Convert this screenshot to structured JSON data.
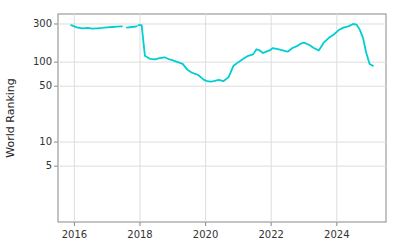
{
  "chart_data": {
    "type": "line",
    "ylabel": "World Ranking",
    "color": "#00CED1",
    "log": "y",
    "grid": true,
    "xlim": [
      2015.5,
      2025.5
    ],
    "xticks": [
      2016,
      2018,
      2020,
      2022,
      2024
    ],
    "ylim": [
      1,
      400
    ],
    "yticks": [
      5,
      10,
      50,
      100,
      300
    ],
    "x": [
      2015.9,
      2016.1,
      2016.25,
      2016.4,
      2016.55,
      2016.7,
      2016.85,
      2017.0,
      2017.15,
      2017.3,
      2017.45,
      null,
      2017.6,
      2017.75,
      2017.9,
      null,
      2017.95,
      2018.05,
      2018.15,
      2018.3,
      2018.45,
      2018.6,
      2018.75,
      2018.9,
      2019.0,
      2019.15,
      2019.3,
      2019.45,
      2019.55,
      2019.65,
      2019.75,
      2019.85,
      2019.95,
      2020.05,
      2020.15,
      2020.25,
      2020.4,
      2020.55,
      2020.7,
      2020.85,
      2021.0,
      2021.15,
      2021.3,
      2021.45,
      2021.55,
      2021.65,
      2021.75,
      2021.85,
      2021.95,
      2022.05,
      2022.2,
      2022.35,
      2022.5,
      2022.65,
      2022.8,
      2022.9,
      2023.0,
      2023.15,
      2023.3,
      2023.45,
      2023.6,
      2023.75,
      2023.9,
      2024.05,
      2024.2,
      2024.35,
      2024.5,
      2024.6,
      2024.7,
      2024.8,
      2024.9,
      2025.0,
      2025.1
    ],
    "values": [
      290,
      270,
      265,
      268,
      262,
      265,
      268,
      272,
      275,
      278,
      280,
      null,
      270,
      275,
      280,
      null,
      290,
      290,
      120,
      110,
      108,
      112,
      115,
      108,
      105,
      100,
      95,
      80,
      75,
      72,
      70,
      65,
      60,
      58,
      57,
      58,
      60,
      58,
      65,
      90,
      100,
      110,
      120,
      125,
      145,
      140,
      130,
      135,
      140,
      150,
      145,
      140,
      135,
      150,
      160,
      170,
      175,
      165,
      150,
      140,
      175,
      200,
      220,
      250,
      270,
      280,
      300,
      295,
      255,
      200,
      130,
      95,
      90
    ]
  }
}
